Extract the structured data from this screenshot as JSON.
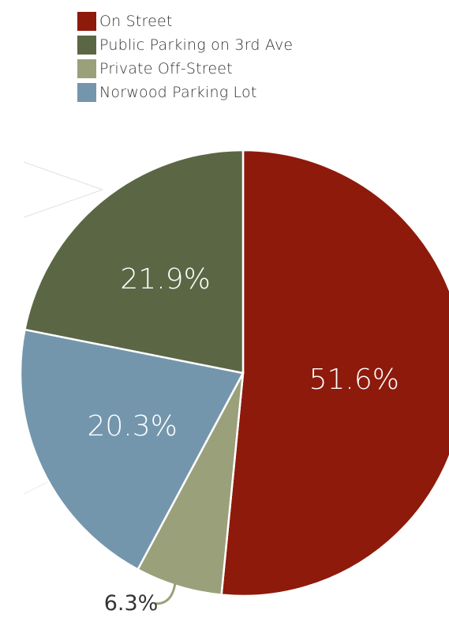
{
  "chart_data": {
    "type": "pie",
    "categories": [
      "On Street",
      "Public Parking on 3rd Ave",
      "Private Off-Street",
      "Norwood Parking Lot"
    ],
    "values": [
      51.6,
      21.9,
      6.3,
      20.3
    ],
    "value_labels": [
      "51.6%",
      "21.9%",
      "6.3%",
      "20.3%"
    ],
    "colors": [
      "#8e1a0c",
      "#5b6744",
      "#9aa07a",
      "#7496ad"
    ],
    "slice_order_clockwise_from_top": [
      "On Street",
      "Private Off-Street",
      "Norwood Parking Lot",
      "Public Parking on 3rd Ave"
    ],
    "legend_position": "top-left"
  },
  "legend": {
    "items": [
      {
        "label": "On Street",
        "color": "#8e1a0c"
      },
      {
        "label": "Public Parking on 3rd Ave",
        "color": "#5b6744"
      },
      {
        "label": "Private Off-Street",
        "color": "#9aa07a"
      },
      {
        "label": "Norwood Parking Lot",
        "color": "#7496ad"
      }
    ]
  }
}
